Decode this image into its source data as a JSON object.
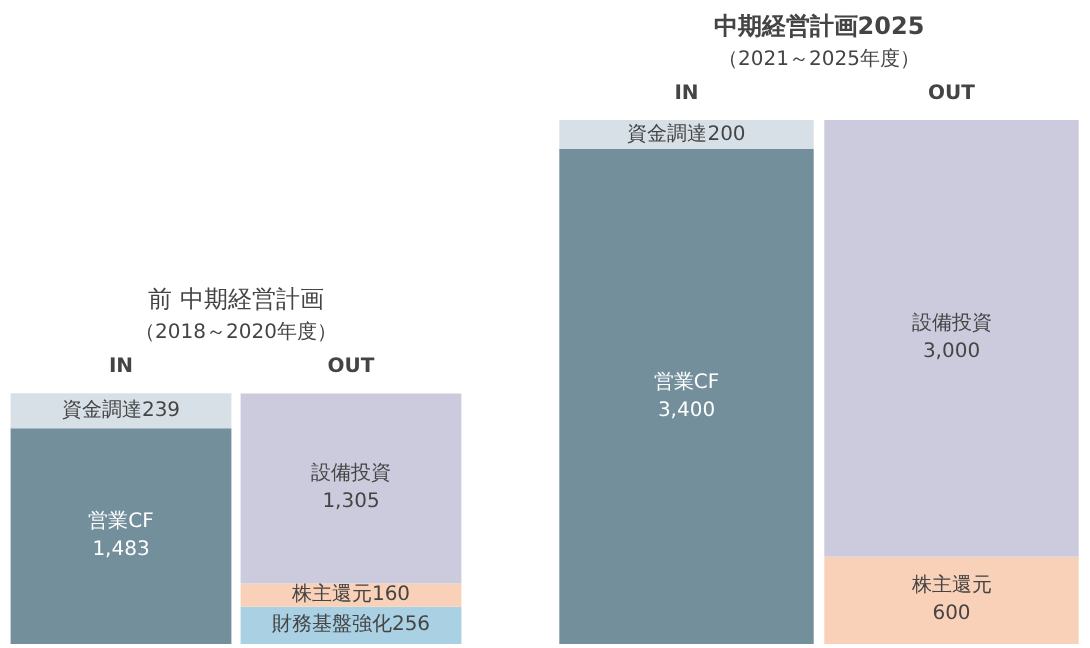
{
  "chart_data": [
    {
      "type": "bar",
      "stacked": true,
      "title": "前 中期経営計画",
      "subtitle": "（2018～2020年度）",
      "categories": [
        "IN",
        "OUT"
      ],
      "tick_labels": "x",
      "series": [
        {
          "name": "営業CF",
          "color": "#738f9c",
          "values": [
            1483,
            null
          ],
          "value_labels": [
            "1,483",
            null
          ]
        },
        {
          "name": "資金調達",
          "color": "#d8e0e7",
          "values": [
            239,
            null
          ],
          "value_labels": [
            "239",
            null
          ]
        },
        {
          "name": "財務基盤強化",
          "color": "#a9d0e3",
          "values": [
            null,
            256
          ],
          "value_labels": [
            null,
            "256"
          ]
        },
        {
          "name": "株主還元",
          "color": "#f9d0b8",
          "values": [
            null,
            160
          ],
          "value_labels": [
            null,
            "160"
          ]
        },
        {
          "name": "設備投資",
          "color": "#cccbde",
          "values": [
            null,
            1305
          ],
          "value_labels": [
            null,
            "1,305"
          ]
        }
      ]
    },
    {
      "type": "bar",
      "stacked": true,
      "title": "中期経営計画2025",
      "subtitle": "（2021～2025年度）",
      "categories": [
        "IN",
        "OUT"
      ],
      "tick_labels": "x",
      "series": [
        {
          "name": "営業CF",
          "color": "#738f9c",
          "values": [
            3400,
            null
          ],
          "value_labels": [
            "3,400",
            null
          ]
        },
        {
          "name": "資金調達",
          "color": "#d8e0e7",
          "values": [
            200,
            null
          ],
          "value_labels": [
            "200",
            null
          ]
        },
        {
          "name": "株主還元",
          "color": "#f9d0b8",
          "values": [
            null,
            600
          ],
          "value_labels": [
            null,
            "600"
          ]
        },
        {
          "name": "設備投資",
          "color": "#cccbde",
          "values": [
            null,
            3000
          ],
          "value_labels": [
            null,
            "3,000"
          ]
        }
      ]
    }
  ]
}
